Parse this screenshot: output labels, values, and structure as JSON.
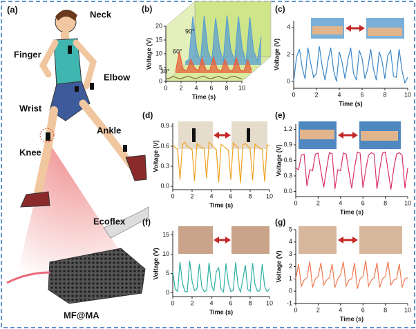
{
  "figure": {
    "label": "(a)",
    "body_labels": [
      "Neck",
      "Finger",
      "Elbow",
      "Wrist",
      "Ankle",
      "Knee"
    ],
    "material_labels": [
      "Ecoflex",
      "MF@MA"
    ]
  },
  "chart_data": [
    {
      "type": "waterfall",
      "label": "(b)",
      "xlabel": "Time (s)",
      "ylabel": "Voltage (V)",
      "x": [
        0,
        0.5,
        1,
        1.5,
        2,
        2.5,
        3,
        3.5,
        4,
        4.5,
        5,
        5.5,
        6,
        6.5,
        7,
        7.5,
        8,
        8.5,
        9,
        9.5,
        10
      ],
      "xlim": [
        0,
        10
      ],
      "xticks": [
        0,
        2,
        4,
        6,
        8,
        10
      ],
      "ylim": [
        0,
        20
      ],
      "yticks": [
        0,
        5,
        10,
        15,
        20
      ],
      "series": [
        {
          "name": "30°",
          "color": "#8a6a3a",
          "values": [
            1.0,
            1.2,
            1.8,
            1.2,
            1.0,
            1.5,
            1.9,
            1.3,
            1.0,
            1.6,
            1.9,
            1.2,
            1.0,
            1.5,
            1.8,
            1.2,
            1.0,
            1.6,
            1.9,
            1.3,
            1.0
          ]
        },
        {
          "name": "60°",
          "color": "#e8603a",
          "values": [
            0.5,
            7.8,
            1.5,
            0.8,
            5.0,
            2.0,
            0.8,
            5.5,
            1.2,
            0.8,
            5.8,
            1.5,
            0.6,
            5.0,
            1.3,
            0.8,
            5.6,
            1.2,
            0.7,
            4.8,
            1.0
          ]
        },
        {
          "name": "90°",
          "color": "#5a9fd0",
          "values": [
            1.0,
            2.0,
            17.5,
            6.0,
            1.0,
            17.8,
            5.0,
            1.2,
            17.0,
            6.5,
            1.0,
            17.9,
            5.5,
            1.2,
            17.5,
            6.0,
            1.0,
            17.2,
            5.0,
            1.5,
            10.0
          ]
        }
      ]
    },
    {
      "type": "line",
      "label": "(c)",
      "xlabel": "Time (s)",
      "ylabel": "Voltage (V)",
      "color": "#3a86c8",
      "x": [
        0,
        0.25,
        0.5,
        0.75,
        1,
        1.25,
        1.5,
        1.75,
        2,
        2.25,
        2.5,
        2.75,
        3,
        3.25,
        3.5,
        3.75,
        4,
        4.25,
        4.5,
        4.75,
        5,
        5.25,
        5.5,
        5.75,
        6,
        6.25,
        6.5,
        6.75,
        7,
        7.25,
        7.5,
        7.75,
        8,
        8.25,
        8.5,
        8.75,
        9,
        9.25,
        9.5,
        9.75,
        10
      ],
      "xlim": [
        0,
        10
      ],
      "xticks": [
        0,
        2,
        4,
        6,
        8,
        10
      ],
      "ylim": [
        -0.5,
        4.5
      ],
      "yticks": [
        0,
        2,
        4
      ],
      "values": [
        0.0,
        1.8,
        2.4,
        1.0,
        0.2,
        2.5,
        1.3,
        0.3,
        0.6,
        2.6,
        1.1,
        0.1,
        1.5,
        2.5,
        0.8,
        0.0,
        2.2,
        1.4,
        0.2,
        1.6,
        2.5,
        0.6,
        0.1,
        2.3,
        1.7,
        0.2,
        1.0,
        2.4,
        0.9,
        0.1,
        2.2,
        1.5,
        0.2,
        1.9,
        2.3,
        0.4,
        0.3,
        2.4,
        0.8,
        -0.1,
        0.3
      ]
    },
    {
      "type": "line",
      "label": "(d)",
      "xlabel": "Time (s)",
      "ylabel": "Voltage (V)",
      "color": "#f0a020",
      "x": [
        0,
        0.25,
        0.5,
        0.75,
        1,
        1.25,
        1.5,
        1.75,
        2,
        2.25,
        2.5,
        2.75,
        3,
        3.25,
        3.5,
        3.75,
        4,
        4.25,
        4.5,
        4.75,
        5,
        5.25,
        5.5,
        5.75,
        6,
        6.25,
        6.5,
        6.75,
        7,
        7.25,
        7.5,
        7.75,
        8,
        8.25,
        8.5,
        8.75,
        9,
        9.25,
        9.5,
        9.75,
        10
      ],
      "xlim": [
        0,
        10
      ],
      "xticks": [
        0,
        2,
        4,
        6,
        8,
        10
      ],
      "ylim": [
        -0.05,
        0.95
      ],
      "yticks": [
        {
          "value": 0,
          "label": "0.0"
        },
        0.3,
        0.6,
        0.9
      ],
      "values": [
        0.62,
        0.58,
        0.55,
        0.1,
        0.62,
        0.66,
        0.6,
        0.57,
        0.55,
        0.08,
        0.64,
        0.6,
        0.58,
        0.56,
        0.12,
        0.66,
        0.62,
        0.58,
        0.55,
        0.06,
        0.63,
        0.6,
        0.57,
        0.54,
        0.1,
        0.65,
        0.61,
        0.58,
        0.05,
        0.62,
        0.64,
        0.6,
        0.56,
        0.09,
        0.63,
        0.6,
        0.57,
        0.55,
        0.07,
        0.62,
        0.6
      ]
    },
    {
      "type": "line",
      "label": "(e)",
      "xlabel": "Time (s)",
      "ylabel": "Voltage (V)",
      "color": "#d8306a",
      "x": [
        0,
        0.25,
        0.5,
        0.75,
        1,
        1.25,
        1.5,
        1.75,
        2,
        2.25,
        2.5,
        2.75,
        3,
        3.25,
        3.5,
        3.75,
        4,
        4.25,
        4.5,
        4.75,
        5,
        5.25,
        5.5,
        5.75,
        6,
        6.25,
        6.5,
        6.75,
        7,
        7.25,
        7.5,
        7.75,
        8,
        8.25,
        8.5,
        8.75,
        9,
        9.25,
        9.5,
        9.75,
        10
      ],
      "xlim": [
        0,
        10
      ],
      "xticks": [
        0,
        2,
        4,
        6,
        8,
        10
      ],
      "ylim": [
        -0.1,
        1.3
      ],
      "yticks": [
        {
          "value": 0,
          "label": "0.0"
        },
        0.3,
        0.6,
        0.9,
        1.2
      ],
      "values": [
        0.45,
        0.42,
        0.7,
        0.72,
        0.1,
        0.42,
        0.4,
        0.72,
        0.74,
        0.4,
        0.08,
        0.44,
        0.75,
        0.73,
        0.05,
        0.42,
        0.4,
        0.74,
        0.72,
        0.38,
        0.06,
        0.45,
        0.76,
        0.74,
        0.07,
        0.42,
        0.7,
        0.75,
        0.72,
        0.05,
        0.43,
        0.74,
        0.76,
        0.4,
        0.04,
        0.44,
        0.72,
        0.75,
        0.7,
        0.06,
        0.45
      ]
    },
    {
      "type": "line",
      "label": "(f)",
      "xlabel": "Time (s)",
      "ylabel": "Voltage (V)",
      "color": "#2ab0a0",
      "x": [
        0,
        0.25,
        0.5,
        0.75,
        1,
        1.25,
        1.5,
        1.75,
        2,
        2.25,
        2.5,
        2.75,
        3,
        3.25,
        3.5,
        3.75,
        4,
        4.25,
        4.5,
        4.75,
        5,
        5.25,
        5.5,
        5.75,
        6,
        6.25,
        6.5,
        6.75,
        7,
        7.25,
        7.5,
        7.75,
        8,
        8.25,
        8.5,
        8.75,
        9,
        9.25,
        9.5,
        9.75,
        10
      ],
      "xlim": [
        0,
        10
      ],
      "xticks": [
        0,
        2,
        4,
        6,
        8,
        10
      ],
      "ylim": [
        -1,
        16
      ],
      "yticks": [
        0,
        5,
        10,
        15
      ],
      "values": [
        5.5,
        1.0,
        0.3,
        8.0,
        2.5,
        0.4,
        0.2,
        8.3,
        3.0,
        0.5,
        1.0,
        7.5,
        1.5,
        0.3,
        0.5,
        7.8,
        2.0,
        0.4,
        5.5,
        6.5,
        0.8,
        0.2,
        7.6,
        2.5,
        0.3,
        0.6,
        7.9,
        1.8,
        0.2,
        3.5,
        7.2,
        0.9,
        0.3,
        7.7,
        2.2,
        0.4,
        0.5,
        7.4,
        1.6,
        0.3,
        1.0
      ]
    },
    {
      "type": "line",
      "label": "(g)",
      "xlabel": "Time (s)",
      "ylabel": "Voltage (V)",
      "color": "#f07850",
      "x": [
        0,
        0.25,
        0.5,
        0.75,
        1,
        1.25,
        1.5,
        1.75,
        2,
        2.25,
        2.5,
        2.75,
        3,
        3.25,
        3.5,
        3.75,
        4,
        4.25,
        4.5,
        4.75,
        5,
        5.25,
        5.5,
        5.75,
        6,
        6.25,
        6.5,
        6.75,
        7,
        7.25,
        7.5,
        7.75,
        8,
        8.25,
        8.5,
        8.75,
        9,
        9.25,
        9.5,
        9.75,
        10
      ],
      "xlim": [
        0,
        10
      ],
      "xticks": [
        0,
        2,
        4,
        6,
        8,
        10
      ],
      "ylim": [
        -1,
        5
      ],
      "yticks": [
        -1,
        0,
        1,
        2,
        3,
        4,
        5
      ],
      "values": [
        1.0,
        2.2,
        0.4,
        0.9,
        1.1,
        2.4,
        0.3,
        1.0,
        1.2,
        2.3,
        0.5,
        0.9,
        1.1,
        2.2,
        0.3,
        1.0,
        1.3,
        2.4,
        0.4,
        0.9,
        1.0,
        2.3,
        0.2,
        1.0,
        1.2,
        2.5,
        0.4,
        0.9,
        1.1,
        2.3,
        0.3,
        1.0,
        1.2,
        2.4,
        0.5,
        0.9,
        1.0,
        2.2,
        0.3,
        1.0,
        1.1
      ]
    }
  ]
}
